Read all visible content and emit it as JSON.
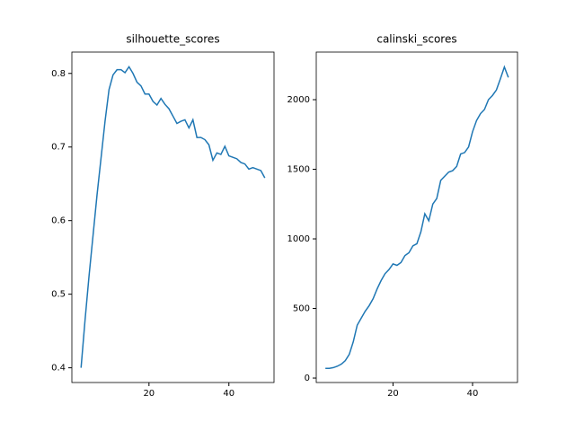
{
  "chart_data": [
    {
      "type": "line",
      "title": "silhouette_scores",
      "x": [
        3,
        4,
        5,
        6,
        7,
        8,
        9,
        10,
        11,
        12,
        13,
        14,
        15,
        16,
        17,
        18,
        19,
        20,
        21,
        22,
        23,
        24,
        25,
        26,
        27,
        28,
        29,
        30,
        31,
        32,
        33,
        34,
        35,
        36,
        37,
        38,
        39,
        40,
        41,
        42,
        43,
        44,
        45,
        46,
        47,
        48,
        49
      ],
      "series": [
        {
          "color": "#1f77b4",
          "values": [
            0.4,
            0.465,
            0.525,
            0.58,
            0.635,
            0.685,
            0.735,
            0.778,
            0.798,
            0.805,
            0.805,
            0.801,
            0.809,
            0.8,
            0.788,
            0.783,
            0.772,
            0.772,
            0.762,
            0.757,
            0.766,
            0.758,
            0.752,
            0.742,
            0.732,
            0.735,
            0.737,
            0.726,
            0.737,
            0.713,
            0.713,
            0.71,
            0.703,
            0.682,
            0.692,
            0.69,
            0.701,
            0.688,
            0.686,
            0.684,
            0.679,
            0.677,
            0.67,
            0.672,
            0.67,
            0.668,
            0.658
          ]
        }
      ],
      "xlim": [
        0.7,
        51.3
      ],
      "xticks": [
        20,
        40
      ],
      "ylim": [
        0.38,
        0.829
      ],
      "yticks": [
        0.4,
        0.5,
        0.6,
        0.7,
        0.8
      ]
    },
    {
      "type": "line",
      "title": "calinski_scores",
      "x": [
        3,
        4,
        5,
        6,
        7,
        8,
        9,
        10,
        11,
        12,
        13,
        14,
        15,
        16,
        17,
        18,
        19,
        20,
        21,
        22,
        23,
        24,
        25,
        26,
        27,
        28,
        29,
        30,
        31,
        32,
        33,
        34,
        35,
        36,
        37,
        38,
        39,
        40,
        41,
        42,
        43,
        44,
        45,
        46,
        47,
        48,
        49
      ],
      "series": [
        {
          "color": "#1f77b4",
          "values": [
            70,
            70,
            75,
            85,
            100,
            125,
            170,
            260,
            380,
            430,
            480,
            520,
            570,
            640,
            700,
            750,
            780,
            820,
            810,
            830,
            880,
            900,
            950,
            965,
            1050,
            1180,
            1130,
            1250,
            1290,
            1420,
            1450,
            1480,
            1490,
            1520,
            1610,
            1620,
            1660,
            1770,
            1850,
            1900,
            1930,
            2000,
            2030,
            2070,
            2150,
            2235,
            2160
          ]
        }
      ],
      "xlim": [
        0.7,
        51.3
      ],
      "xticks": [
        20,
        40
      ],
      "ylim": [
        -32,
        2342
      ],
      "yticks": [
        0,
        500,
        1000,
        1500,
        2000
      ]
    }
  ]
}
